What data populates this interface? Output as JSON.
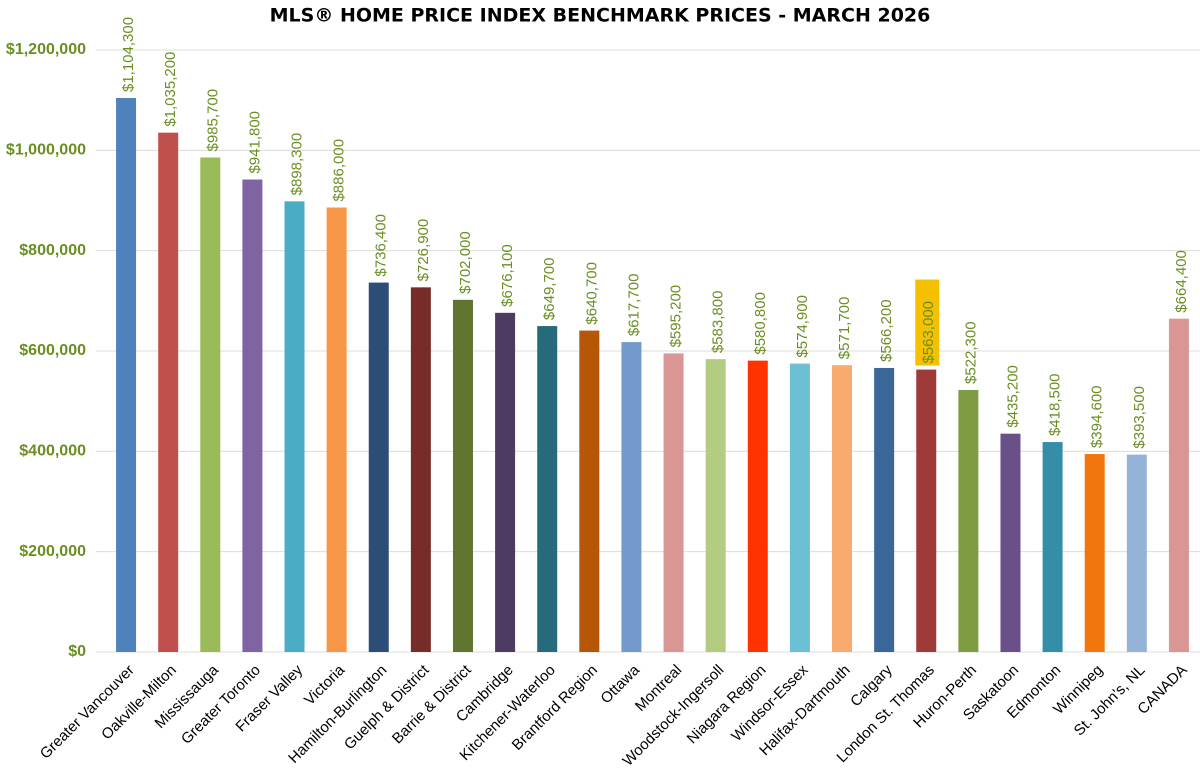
{
  "chart_data": {
    "type": "bar",
    "title": "MLS® HOME PRICE INDEX BENCHMARK PRICES - MARCH 2026",
    "categories": [
      "Greater Vancouver",
      "Oakville-Milton",
      "Mississauga",
      "Greater Toronto",
      "Fraser Valley",
      "Victoria",
      "Hamilton-Burlington",
      "Guelph & District",
      "Barrie & District",
      "Cambridge",
      "Kitchener-Waterloo",
      "Brantford Region",
      "Ottawa",
      "Montreal",
      "Woodstock-Ingersoll",
      "Niagara Region",
      "Windsor-Essex",
      "Halifax-Dartmouth",
      "Calgary",
      "London St. Thomas",
      "Huron-Perth",
      "Saskatoon",
      "Edmonton",
      "Winnipeg",
      "St. John's, NL",
      "CANADA"
    ],
    "values": [
      1104300,
      1035200,
      985700,
      941800,
      898300,
      886000,
      736400,
      726900,
      702000,
      676100,
      649700,
      640700,
      617700,
      595200,
      583800,
      580800,
      574900,
      571700,
      566200,
      563000,
      522300,
      435200,
      418500,
      394600,
      393500,
      664400
    ],
    "value_labels": [
      "$1,104,300",
      "$1,035,200",
      "$985,700",
      "$941,800",
      "$898,300",
      "$886,000",
      "$736,400",
      "$726,900",
      "$702,000",
      "$676,100",
      "$649,700",
      "$640,700",
      "$617,700",
      "$595,200",
      "$583,800",
      "$580,800",
      "$574,900",
      "$571,700",
      "$566,200",
      "$563,000",
      "$522,300",
      "$435,200",
      "$418,500",
      "$394,600",
      "$393,500",
      "$664,400"
    ],
    "colors": [
      "#4f81bd",
      "#c0504d",
      "#9bbb59",
      "#8064a2",
      "#4bacc6",
      "#f79646",
      "#2c4d75",
      "#772c2a",
      "#5f7530",
      "#4d3b62",
      "#276a7c",
      "#b65708",
      "#729aca",
      "#d99694",
      "#b3cc82",
      "#ff3300",
      "#6cbfd4",
      "#f9aa6f",
      "#3a6699",
      "#9e3b38",
      "#7e9c42",
      "#6a5088",
      "#348ea8",
      "#f2760e",
      "#95b3d7",
      "#d99694"
    ],
    "label_color": "#6b8e23",
    "value_label_highlight": {
      "index": 19,
      "color": "#f5c000"
    },
    "ylim": [
      0,
      1200000
    ],
    "yticks": [
      {
        "value": 0,
        "label": "$0"
      },
      {
        "value": 200000,
        "label": "$200,000"
      },
      {
        "value": 400000,
        "label": "$400,000"
      },
      {
        "value": 600000,
        "label": "$600,000"
      },
      {
        "value": 800000,
        "label": "$800,000"
      },
      {
        "value": 1000000,
        "label": "$1,000,000"
      },
      {
        "value": 1200000,
        "label": "$1,200,000"
      }
    ],
    "grid": true
  }
}
